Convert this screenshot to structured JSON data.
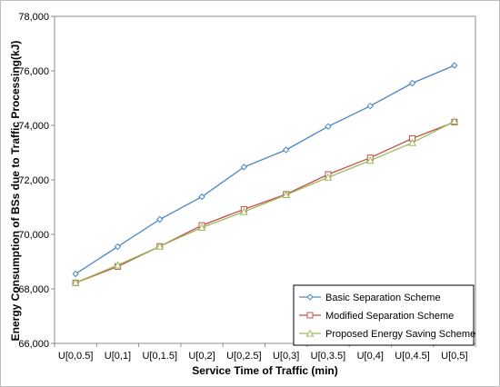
{
  "chart_data": {
    "type": "line",
    "xlabel": "Service Time of Traffic (min)",
    "ylabel": "Energy Consumption of BSs due to Traffic Processing(kJ)",
    "categories": [
      "U[0,0.5]",
      "U[0,1]",
      "U[0,1.5]",
      "U[0,2]",
      "U[0,2.5]",
      "U[0,3]",
      "U[0,3.5]",
      "U[0,4]",
      "U[0,4.5]",
      "U[0,5]"
    ],
    "ylim": [
      66000,
      78000
    ],
    "yticks": [
      66000,
      68000,
      70000,
      72000,
      74000,
      76000,
      78000
    ],
    "ytick_labels": [
      "66,000",
      "68,000",
      "70,000",
      "72,000",
      "74,000",
      "76,000",
      "78,000"
    ],
    "grid": false,
    "legend_position": "bottom-right",
    "series": [
      {
        "name": "Basic Separation Scheme",
        "color": "#4a86c5",
        "marker": "diamond",
        "values": [
          68550,
          69550,
          70550,
          71380,
          72470,
          73100,
          73960,
          74710,
          75550,
          76200
        ]
      },
      {
        "name": "Modified Separation Scheme",
        "color": "#c0504d",
        "marker": "square",
        "values": [
          68220,
          68820,
          69560,
          70330,
          70920,
          71470,
          72200,
          72810,
          73520,
          74120
        ]
      },
      {
        "name": "Proposed Energy Saving Scheme",
        "color": "#9bbb59",
        "marker": "triangle",
        "values": [
          68230,
          68870,
          69560,
          70250,
          70830,
          71450,
          72090,
          72710,
          73360,
          74150
        ]
      }
    ]
  }
}
